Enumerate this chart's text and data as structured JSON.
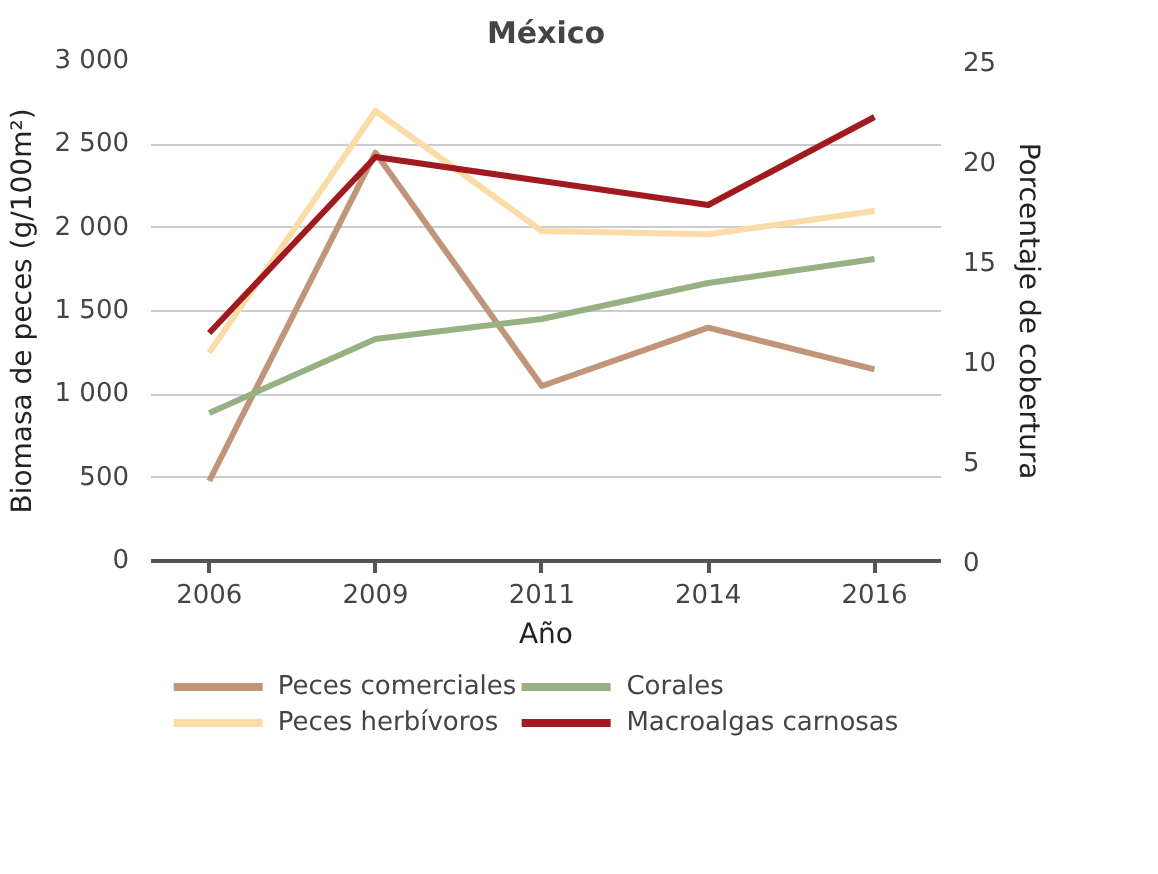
{
  "chart_data": {
    "type": "line",
    "title": "México",
    "xlabel": "Año",
    "ylabel": "Biomasa de peces (g/100m²)",
    "y2label": "Porcentaje de cobertura",
    "categories": [
      "2006",
      "2009",
      "2011",
      "2014",
      "2016"
    ],
    "series": [
      {
        "name": "Peces comerciales",
        "color": "#c0957a",
        "values": [
          480,
          2450,
          1050,
          1400,
          1150
        ]
      },
      {
        "name": "Corales",
        "color": "#98b183",
        "values": [
          7.4,
          11.1,
          12.1,
          13.9,
          15.1
        ],
        "axis": "y2"
      },
      {
        "name": "Peces herbívoros",
        "color": "#fbdba6",
        "values": [
          1250,
          2700,
          1980,
          1960,
          2100
        ]
      },
      {
        "name": "Macroalgas carnosas",
        "color": "#a11a1f",
        "values": [
          11.4,
          20.2,
          19.0,
          17.8,
          22.2
        ],
        "axis": "y2"
      }
    ],
    "ylim": [
      0,
      3000
    ],
    "yticks": [
      0,
      {
        "value": 500,
        "label": "500"
      },
      {
        "value": 1000,
        "label": "1 000"
      },
      {
        "value": 1500,
        "label": "1 500"
      },
      {
        "value": 2000,
        "label": "2 000"
      },
      {
        "value": 2500,
        "label": "2 500"
      },
      {
        "value": 3000,
        "label": "3 000"
      }
    ],
    "y2lim": [
      0,
      25
    ],
    "y2ticks": [
      0,
      5,
      10,
      15,
      20,
      25
    ],
    "grid": "y",
    "legend": "bottom",
    "marker": "none",
    "line_style": "solid"
  }
}
